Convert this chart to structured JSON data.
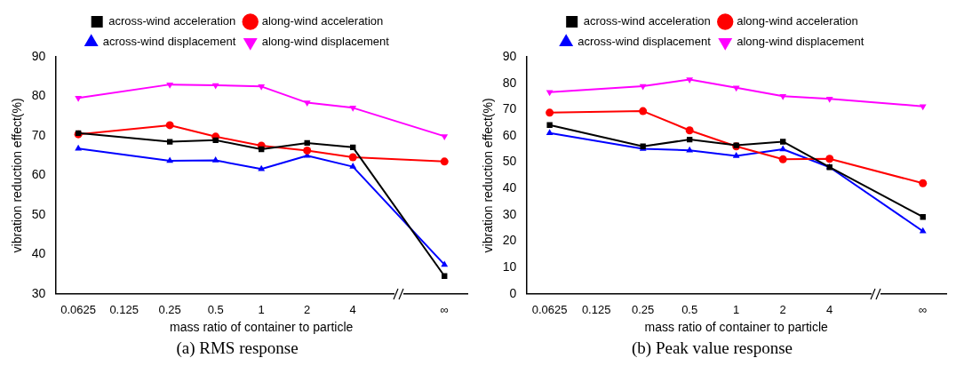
{
  "chart_data": [
    {
      "type": "line",
      "title": "(a) RMS response",
      "xlabel": "mass ratio of container to particle",
      "ylabel": "vibration reduction effect(%)",
      "categories": [
        "0.0625",
        "0.125",
        "0.25",
        "0.5",
        "1",
        "2",
        "4",
        null,
        "∞"
      ],
      "ylim": [
        30,
        90
      ],
      "yticks": [
        30,
        40,
        50,
        60,
        70,
        80,
        90
      ],
      "legend": "top",
      "grid": false,
      "series": [
        {
          "name": "across-wind acceleration",
          "color": "#000000",
          "marker": "square",
          "values": [
            70.7,
            null,
            68.5,
            68.9,
            66.6,
            68.2,
            67.1,
            null,
            34.5
          ]
        },
        {
          "name": "along-wind acceleration",
          "color": "#ff0000",
          "marker": "circle",
          "values": [
            70.4,
            null,
            72.7,
            69.8,
            67.5,
            66.3,
            64.6,
            null,
            63.5
          ]
        },
        {
          "name": "across-wind displacement",
          "color": "#0000ff",
          "marker": "triangle",
          "values": [
            66.8,
            null,
            63.7,
            63.8,
            61.6,
            65.0,
            62.2,
            null,
            37.4
          ]
        },
        {
          "name": "along-wind displacement",
          "color": "#ff00ff",
          "marker": "triangle-down",
          "values": [
            79.6,
            null,
            83.0,
            82.8,
            82.5,
            78.4,
            77.1,
            null,
            69.9
          ]
        }
      ]
    },
    {
      "type": "line",
      "title": "(b) Peak value response",
      "xlabel": "mass ratio of container to particle",
      "ylabel": "vibration reduction effect(%)",
      "categories": [
        "0.0625",
        "0.125",
        "0.25",
        "0.5",
        "1",
        "2",
        "4",
        null,
        "∞"
      ],
      "ylim": [
        0,
        90
      ],
      "yticks": [
        0,
        10,
        20,
        30,
        40,
        50,
        60,
        70,
        80,
        90
      ],
      "legend": "top",
      "grid": false,
      "series": [
        {
          "name": "across-wind acceleration",
          "color": "#000000",
          "marker": "square",
          "values": [
            64.1,
            null,
            56.0,
            58.6,
            56.4,
            57.8,
            48.1,
            null,
            29.2
          ]
        },
        {
          "name": "along-wind acceleration",
          "color": "#ff0000",
          "marker": "circle",
          "values": [
            68.8,
            null,
            69.4,
            62.1,
            56.0,
            51.1,
            51.3,
            null,
            42.0
          ]
        },
        {
          "name": "across-wind displacement",
          "color": "#0000ff",
          "marker": "triangle",
          "values": [
            61.1,
            null,
            55.1,
            54.5,
            52.4,
            54.9,
            48.1,
            null,
            23.8
          ]
        },
        {
          "name": "along-wind displacement",
          "color": "#ff00ff",
          "marker": "triangle-down",
          "values": [
            76.6,
            null,
            78.9,
            81.4,
            78.3,
            75.1,
            74.1,
            null,
            71.2
          ]
        }
      ]
    }
  ]
}
